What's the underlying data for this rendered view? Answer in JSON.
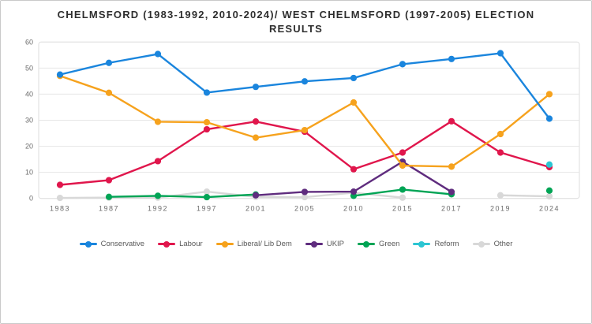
{
  "title": "CHELMSFORD (1983-1992, 2010-2024)/ WEST CHELMSFORD (1997-2005) ELECTION RESULTS",
  "colors": {
    "background": "#ffffff",
    "page_border": "#c9c9c9",
    "plot_border": "#dcdcdc",
    "gridline": "#e6e6e6",
    "tick_text": "#6b6b6b",
    "title_text": "#2e2e2e"
  },
  "chart_data": {
    "type": "line",
    "title": "CHELMSFORD (1983-1992, 2010-2024)/ WEST CHELMSFORD (1997-2005) ELECTION RESULTS",
    "xlabel": "",
    "ylabel": "",
    "ylim": [
      0,
      60
    ],
    "y_ticks": [
      0,
      10,
      20,
      30,
      40,
      50,
      60
    ],
    "grid": true,
    "legend_position": "bottom",
    "categories": [
      "1983",
      "1987",
      "1992",
      "1997",
      "2001",
      "2005",
      "2010",
      "2015",
      "2017",
      "2019",
      "2024"
    ],
    "series": [
      {
        "name": "Conservative",
        "color": "#1a85dd",
        "values": [
          47.5,
          52,
          55.4,
          40.6,
          42.8,
          44.9,
          46.2,
          51.5,
          53.5,
          55.7,
          30.6
        ]
      },
      {
        "name": "Labour",
        "color": "#e0164c",
        "values": [
          5.2,
          7,
          14.3,
          26.5,
          29.5,
          25.6,
          11.2,
          17.6,
          29.6,
          17.6,
          12
        ]
      },
      {
        "name": "Liberal/ Lib Dem",
        "color": "#f6a21d",
        "values": [
          47,
          40.5,
          29.4,
          29.2,
          23.3,
          26.2,
          36.8,
          12.6,
          12.2,
          24.7,
          40
        ]
      },
      {
        "name": "UKIP",
        "color": "#5f2c7e",
        "values": [
          null,
          null,
          null,
          null,
          1.2,
          2.5,
          2.6,
          14.1,
          2.5,
          null,
          null
        ]
      },
      {
        "name": "Green",
        "color": "#00a455",
        "values": [
          null,
          0.6,
          1,
          0.5,
          1.5,
          null,
          1,
          3.4,
          1.6,
          null,
          3
        ]
      },
      {
        "name": "Reform",
        "color": "#2cc5d2",
        "values": [
          null,
          null,
          null,
          null,
          null,
          null,
          null,
          null,
          null,
          null,
          13
        ]
      },
      {
        "name": "Other",
        "color": "#d8d8d8",
        "values": [
          0.2,
          0.3,
          0.3,
          2.6,
          0.6,
          0.5,
          2.2,
          0.3,
          null,
          1.2,
          0.8
        ]
      }
    ]
  }
}
